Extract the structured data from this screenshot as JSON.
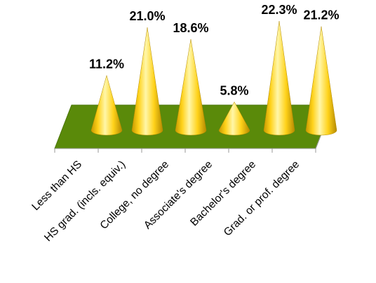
{
  "chart_data": {
    "type": "bar",
    "mark_shape": "3d-cone",
    "categories": [
      "Less than HS",
      "HS grad. (incls. equiv.)",
      "College, no degree",
      "Associate's degree",
      "Bachelor's degree",
      "Grad. or prof. degree"
    ],
    "values": [
      11.2,
      21.0,
      18.6,
      5.8,
      22.3,
      21.2
    ],
    "data_labels": [
      "11.2%",
      "21.0%",
      "18.6%",
      "5.8%",
      "22.3%",
      "21.2%"
    ],
    "title": "",
    "xlabel": "",
    "ylabel": "",
    "ylim": [
      0,
      22.3
    ],
    "grid": false,
    "legend": "none",
    "colors": {
      "floor": "#5a8a0a",
      "cone_light": "#fff6a8",
      "cone_mid": "#ffd21a",
      "cone_dark": "#c79a00",
      "axis": "#9a9a9a"
    }
  }
}
